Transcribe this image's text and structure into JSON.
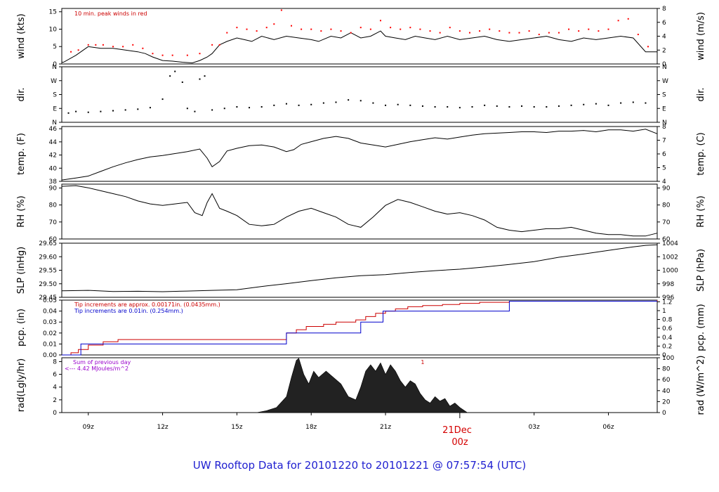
{
  "title": "UW Rooftop Data for 20101220  to  20101221 @ 07:57:54  (UTC)",
  "date_label": {
    "day": "21Dec",
    "hour": "00z"
  },
  "x_axis": {
    "ticks": [
      {
        "h": 9,
        "label": "09z"
      },
      {
        "h": 12,
        "label": "12z"
      },
      {
        "h": 15,
        "label": "15z"
      },
      {
        "h": 18,
        "label": "18z"
      },
      {
        "h": 21,
        "label": "21z"
      },
      {
        "h": 27,
        "label": "03z"
      },
      {
        "h": 30,
        "label": "06z"
      }
    ],
    "xlim": [
      7.93,
      31.97
    ],
    "day_boundary": 24
  },
  "chart_data": [
    {
      "id": "wind",
      "type": "line",
      "ylabel_left": "wind (kts)",
      "ylabel_right": "wind (m/s)",
      "ylim": [
        0,
        16
      ],
      "left_ticks": [
        "0",
        "5",
        "10",
        "15"
      ],
      "right_ticks": [
        "0",
        "2",
        "4",
        "6",
        "8"
      ],
      "annotation": "10 min. peak winds in red",
      "series": [
        {
          "color": "#000000",
          "x": [
            7.93,
            8.0,
            8.5,
            9.0,
            9.5,
            10.0,
            10.5,
            11.0,
            11.3,
            11.6,
            12.0,
            12.4,
            12.8,
            13.2,
            13.5,
            13.8,
            14.0,
            14.3,
            14.6,
            15.0,
            15.3,
            15.6,
            16.0,
            16.5,
            17.0,
            17.5,
            18.0,
            18.3,
            18.8,
            19.2,
            19.6,
            20.0,
            20.4,
            20.8,
            21.0,
            21.4,
            21.8,
            22.2,
            22.6,
            23.0,
            23.5,
            24.0,
            24.5,
            25.0,
            25.5,
            26.0,
            26.5,
            27.0,
            27.5,
            28.0,
            28.5,
            29.0,
            29.5,
            30.0,
            30.5,
            31.0,
            31.5,
            31.97
          ],
          "y": [
            0.5,
            0.5,
            2.5,
            5.0,
            4.5,
            4.5,
            4.0,
            3.5,
            3.0,
            2.0,
            1.0,
            0.8,
            0.5,
            0.3,
            1.0,
            2.0,
            3.0,
            5.5,
            6.5,
            7.5,
            7.0,
            6.5,
            8.0,
            7.0,
            8.0,
            7.5,
            7.0,
            6.5,
            8.0,
            7.5,
            9.0,
            7.5,
            8.0,
            9.5,
            8.0,
            7.5,
            7.0,
            8.0,
            7.5,
            7.0,
            8.0,
            7.0,
            7.5,
            8.0,
            7.0,
            6.5,
            7.0,
            7.5,
            8.0,
            7.0,
            6.5,
            7.5,
            7.0,
            7.5,
            8.0,
            7.5,
            3.5,
            3.5
          ]
        },
        {
          "color": "#ff0000",
          "mode": "points",
          "x": [
            8.3,
            8.6,
            9.0,
            9.3,
            9.6,
            10.0,
            10.4,
            10.8,
            11.2,
            11.6,
            12.0,
            12.4,
            13.0,
            13.5,
            14.0,
            14.3,
            14.6,
            15.0,
            15.4,
            15.8,
            16.2,
            16.5,
            16.8,
            17.2,
            17.6,
            18.0,
            18.4,
            18.8,
            19.2,
            19.6,
            20.0,
            20.4,
            20.8,
            21.2,
            21.6,
            22.0,
            22.4,
            22.8,
            23.2,
            23.6,
            24.0,
            24.4,
            24.8,
            25.2,
            25.6,
            26.0,
            26.4,
            26.8,
            27.2,
            27.6,
            28.0,
            28.4,
            28.8,
            29.2,
            29.6,
            30.0,
            30.4,
            30.8,
            31.2,
            31.6
          ],
          "y": [
            3.5,
            4.0,
            5.5,
            5.5,
            5.5,
            5.0,
            5.0,
            5.5,
            4.5,
            3.0,
            2.5,
            2.5,
            2.5,
            3.0,
            5.5,
            5.5,
            9.0,
            10.5,
            10.0,
            9.5,
            10.5,
            11.5,
            15.5,
            11.0,
            10.0,
            10.0,
            9.5,
            10.0,
            9.5,
            9.0,
            10.5,
            10.0,
            12.5,
            10.5,
            10.0,
            10.5,
            10.0,
            9.5,
            9.0,
            10.5,
            9.5,
            9.0,
            9.5,
            10.0,
            9.5,
            9.0,
            9.0,
            9.5,
            8.5,
            9.0,
            9.0,
            10.0,
            9.5,
            10.0,
            9.5,
            10.0,
            12.5,
            13.0,
            8.5,
            5.0
          ]
        }
      ]
    },
    {
      "id": "dir",
      "type": "scatter",
      "ylabel_left": "dir.",
      "ylabel_right": "dir.",
      "ylim": [
        0,
        360
      ],
      "left_ticks": [
        "N",
        "E",
        "S",
        "W",
        "N"
      ],
      "right_ticks": [
        "N",
        "E",
        "S",
        "W",
        "N"
      ],
      "series": [
        {
          "color": "#000000",
          "x": [
            8.2,
            8.5,
            9.0,
            9.5,
            10.0,
            10.5,
            11.0,
            11.5,
            12.0,
            12.3,
            12.5,
            12.8,
            13.0,
            13.3,
            13.5,
            13.7,
            14.0,
            14.5,
            15.0,
            15.5,
            16.0,
            16.5,
            17.0,
            17.5,
            18.0,
            18.5,
            19.0,
            19.5,
            20.0,
            20.5,
            21.0,
            21.5,
            22.0,
            22.5,
            23.0,
            23.5,
            24.0,
            24.5,
            25.0,
            25.5,
            26.0,
            26.5,
            27.0,
            27.5,
            28.0,
            28.5,
            29.0,
            29.5,
            30.0,
            30.5,
            31.0,
            31.5
          ],
          "y": [
            60,
            70,
            65,
            70,
            75,
            80,
            85,
            95,
            150,
            300,
            330,
            260,
            90,
            70,
            280,
            300,
            80,
            90,
            100,
            95,
            100,
            110,
            120,
            110,
            115,
            125,
            130,
            145,
            140,
            125,
            110,
            115,
            110,
            105,
            100,
            100,
            95,
            100,
            110,
            105,
            100,
            105,
            100,
            100,
            105,
            110,
            115,
            120,
            110,
            125,
            130,
            125
          ]
        }
      ]
    },
    {
      "id": "temp",
      "type": "line",
      "ylabel_left": "temp. (F)",
      "ylabel_right": "temp. (C)",
      "ylim": [
        38,
        46.3
      ],
      "left_ticks": [
        "38",
        "40",
        "42",
        "44",
        "46"
      ],
      "right_ticks": [
        "4",
        "5",
        "6",
        "7",
        "8"
      ],
      "series": [
        {
          "color": "#000000",
          "x": [
            7.93,
            8.5,
            9.0,
            9.5,
            10.0,
            10.5,
            11.0,
            11.5,
            12.0,
            12.5,
            13.0,
            13.5,
            13.8,
            14.0,
            14.3,
            14.6,
            15.0,
            15.5,
            16.0,
            16.5,
            17.0,
            17.3,
            17.6,
            18.0,
            18.5,
            19.0,
            19.5,
            20.0,
            20.5,
            21.0,
            21.5,
            22.0,
            22.5,
            23.0,
            23.5,
            24.0,
            24.5,
            25.0,
            25.5,
            26.0,
            26.5,
            27.0,
            27.5,
            28.0,
            28.5,
            29.0,
            29.5,
            30.0,
            30.5,
            31.0,
            31.5,
            31.97
          ],
          "y": [
            38.2,
            38.5,
            38.8,
            39.5,
            40.2,
            40.8,
            41.3,
            41.7,
            41.9,
            42.2,
            42.5,
            42.9,
            41.5,
            40.2,
            41.0,
            42.6,
            43.0,
            43.4,
            43.5,
            43.2,
            42.5,
            42.8,
            43.6,
            44.0,
            44.5,
            44.8,
            44.5,
            43.8,
            43.5,
            43.2,
            43.6,
            44.0,
            44.3,
            44.6,
            44.4,
            44.7,
            45.0,
            45.2,
            45.3,
            45.4,
            45.5,
            45.5,
            45.4,
            45.6,
            45.6,
            45.7,
            45.5,
            45.8,
            45.8,
            45.6,
            45.9,
            45.2
          ]
        }
      ]
    },
    {
      "id": "rh",
      "type": "line",
      "ylabel_left": "RH (%)",
      "ylabel_right": "RH (%)",
      "ylim": [
        55,
        92.5
      ],
      "left_ticks": [
        "60",
        "70",
        "80",
        "90"
      ],
      "right_ticks": [
        "60",
        "70",
        "80",
        "90"
      ],
      "series": [
        {
          "color": "#000000",
          "x": [
            7.93,
            8.5,
            9.0,
            9.5,
            10.0,
            10.5,
            11.0,
            11.5,
            12.0,
            12.5,
            13.0,
            13.3,
            13.6,
            13.8,
            14.0,
            14.3,
            14.6,
            15.0,
            15.5,
            16.0,
            16.5,
            17.0,
            17.5,
            18.0,
            18.5,
            19.0,
            19.5,
            20.0,
            20.5,
            21.0,
            21.5,
            22.0,
            22.5,
            23.0,
            23.5,
            24.0,
            24.5,
            25.0,
            25.5,
            26.0,
            26.5,
            27.0,
            27.5,
            28.0,
            28.5,
            29.0,
            29.5,
            30.0,
            30.5,
            31.0,
            31.5,
            31.97
          ],
          "y": [
            91,
            91.5,
            90,
            88,
            86,
            84,
            81,
            79,
            78,
            79,
            80,
            73,
            71,
            80,
            86,
            76,
            74,
            71,
            65,
            64,
            65,
            70,
            74,
            76,
            73,
            70,
            65,
            63,
            70,
            78,
            82,
            80,
            77,
            74,
            72,
            73,
            71,
            68,
            63,
            61,
            60,
            61,
            62,
            62,
            63,
            61,
            59,
            58,
            58,
            57,
            57,
            59
          ]
        }
      ]
    },
    {
      "id": "slp",
      "type": "line",
      "ylabel_left": "SLP (inHg)",
      "ylabel_right": "SLP (hPa)",
      "ylim": [
        29.405,
        29.655
      ],
      "left_ticks": [
        "29.45",
        "29.50",
        "29.55",
        "29.60",
        "29.65"
      ],
      "right_ticks": [
        "996",
        "998",
        "1000",
        "1002",
        "1004"
      ],
      "series": [
        {
          "color": "#000000",
          "x": [
            7.93,
            9.0,
            10.0,
            11.0,
            12.0,
            13.0,
            14.0,
            15.0,
            16.0,
            17.0,
            18.0,
            19.0,
            20.0,
            21.0,
            22.0,
            23.0,
            24.0,
            25.0,
            26.0,
            27.0,
            28.0,
            29.0,
            30.0,
            31.0,
            31.5,
            31.97
          ],
          "y": [
            29.435,
            29.437,
            29.432,
            29.433,
            29.431,
            29.434,
            29.437,
            29.44,
            29.455,
            29.468,
            29.482,
            29.495,
            29.505,
            29.51,
            29.52,
            29.528,
            29.535,
            29.545,
            29.557,
            29.57,
            29.59,
            29.605,
            29.622,
            29.638,
            29.645,
            29.648
          ]
        }
      ]
    },
    {
      "id": "pcp",
      "type": "line",
      "ylabel_left": "pcp. (in)",
      "ylabel_right": "pcp. (mm)",
      "ylim": [
        0,
        0.05
      ],
      "left_ticks": [
        "0.00",
        "0.01",
        "0.02",
        "0.03",
        "0.04",
        "0.05"
      ],
      "right_ticks": [
        "0",
        "0.2",
        "0.4",
        "0.6",
        "0.8",
        "1",
        "1.2"
      ],
      "notes": [
        {
          "text": "Tip increments are approx. 0.00171in. (0.0435mm.)",
          "color": "#cc0000"
        },
        {
          "text": "Tip increments are 0.01in. (0.254mm.)",
          "color": "#0000cc"
        }
      ],
      "series": [
        {
          "color": "#cc0000",
          "mode": "step",
          "x": [
            7.93,
            8.3,
            8.6,
            9.0,
            9.6,
            10.2,
            17.0,
            17.4,
            17.8,
            18.5,
            19.0,
            19.8,
            20.2,
            20.6,
            21.0,
            21.4,
            21.9,
            22.5,
            23.3,
            24.0,
            24.8,
            26.0,
            31.97
          ],
          "y": [
            0.0,
            0.002,
            0.005,
            0.009,
            0.012,
            0.014,
            0.02,
            0.023,
            0.026,
            0.028,
            0.03,
            0.032,
            0.035,
            0.038,
            0.04,
            0.042,
            0.044,
            0.045,
            0.046,
            0.047,
            0.048,
            0.049,
            0.05
          ]
        },
        {
          "color": "#0000cc",
          "mode": "step",
          "x": [
            7.93,
            8.7,
            17.0,
            20.0,
            20.9,
            26.0,
            31.97
          ],
          "y": [
            0.0,
            0.01,
            0.02,
            0.03,
            0.04,
            0.049,
            0.049
          ]
        }
      ]
    },
    {
      "id": "rad",
      "type": "area",
      "ylabel_left": "rad(Lgly/hr)",
      "ylabel_right": "rad (W/m^2)",
      "ylim": [
        0,
        8.6
      ],
      "left_ticks": [
        "0",
        "2",
        "4",
        "6",
        "8"
      ],
      "right_ticks": [
        "0",
        "20",
        "40",
        "60",
        "80",
        "100"
      ],
      "notes": [
        {
          "text": "Sum of previous day",
          "color": "#9900cc"
        },
        {
          "text": "<--- 4.42 MJoules/m^2",
          "color": "#9900cc"
        }
      ],
      "marker": {
        "x": 22.5,
        "label": "1"
      },
      "series": [
        {
          "color": "#222222",
          "x": [
            15.8,
            16.2,
            16.6,
            17.0,
            17.2,
            17.4,
            17.5,
            17.7,
            17.9,
            18.1,
            18.3,
            18.6,
            18.9,
            19.2,
            19.5,
            19.8,
            20.0,
            20.2,
            20.4,
            20.6,
            20.8,
            21.0,
            21.2,
            21.4,
            21.6,
            21.8,
            22.0,
            22.2,
            22.4,
            22.6,
            22.8,
            23.0,
            23.2,
            23.4,
            23.6,
            23.8,
            24.0,
            24.3
          ],
          "y": [
            0.0,
            0.3,
            0.8,
            2.5,
            5.5,
            8.2,
            8.5,
            6.0,
            4.5,
            6.5,
            5.5,
            6.5,
            5.5,
            4.5,
            2.5,
            2.0,
            4.0,
            6.5,
            7.5,
            6.5,
            7.8,
            6.0,
            7.5,
            6.5,
            5.0,
            4.0,
            5.0,
            4.5,
            3.0,
            2.0,
            1.5,
            2.5,
            1.8,
            2.2,
            1.0,
            1.5,
            0.8,
            0.0
          ]
        }
      ]
    }
  ]
}
